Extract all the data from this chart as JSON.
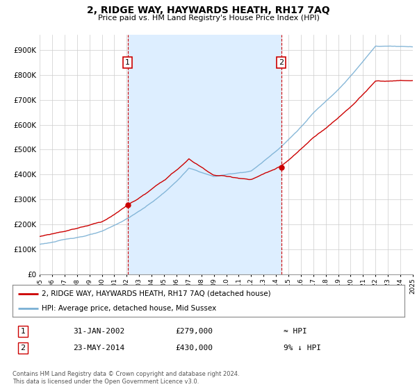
{
  "title": "2, RIDGE WAY, HAYWARDS HEATH, RH17 7AQ",
  "subtitle": "Price paid vs. HM Land Registry's House Price Index (HPI)",
  "ytick_vals": [
    0,
    100000,
    200000,
    300000,
    400000,
    500000,
    600000,
    700000,
    800000,
    900000
  ],
  "ylim": [
    0,
    960000
  ],
  "sale1_t": 7.08,
  "sale1_price": 279000,
  "sale2_t": 19.42,
  "sale2_price": 430000,
  "sale1_label": "1",
  "sale2_label": "2",
  "vline_color": "#cc0000",
  "hpi_color": "#7ab0d4",
  "price_color": "#cc0000",
  "shade_color": "#ddeeff",
  "legend_label_price": "2, RIDGE WAY, HAYWARDS HEATH, RH17 7AQ (detached house)",
  "legend_label_hpi": "HPI: Average price, detached house, Mid Sussex",
  "table_row1": [
    "1",
    "31-JAN-2002",
    "£279,000",
    "≈ HPI"
  ],
  "table_row2": [
    "2",
    "23-MAY-2014",
    "£430,000",
    "9% ↓ HPI"
  ],
  "footnote": "Contains HM Land Registry data © Crown copyright and database right 2024.\nThis data is licensed under the Open Government Licence v3.0.",
  "background_color": "#ffffff",
  "grid_color": "#cccccc",
  "start_year": 1995,
  "end_year": 2025
}
